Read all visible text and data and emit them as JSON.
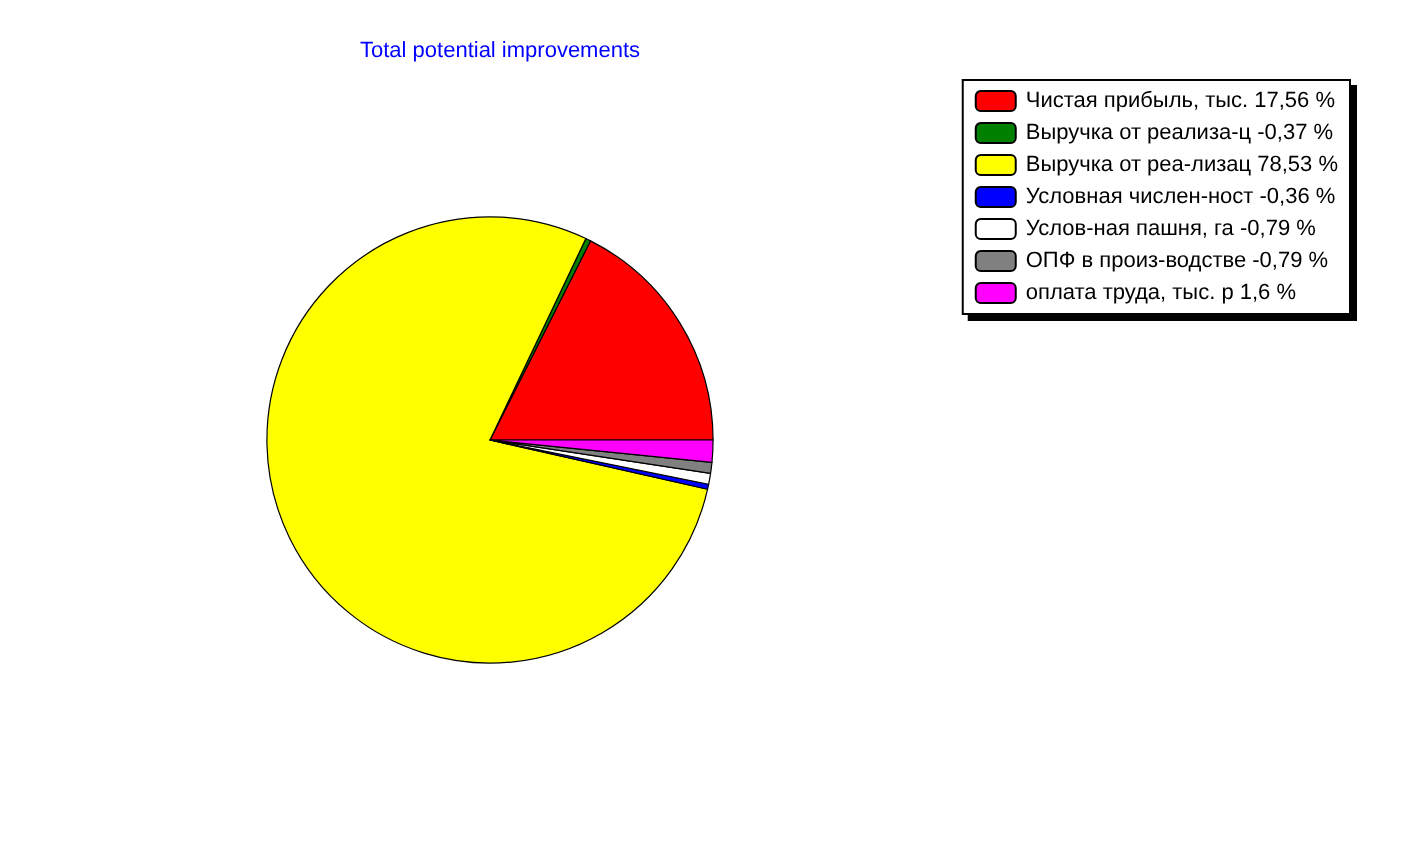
{
  "chart_data": {
    "type": "pie",
    "title": "Total potential improvements",
    "categories": [
      "Чистая прибыль, тыс. 17,56 %",
      "Выручка от реализа-ц -0,37 %",
      "Выручка от реа-лизац 78,53 %",
      "Условная числен-ност -0,36 %",
      "Услов-ная пашня, га -0,79 %",
      "ОПФ в произ-водстве -0,79 %",
      "оплата труда, тыс. р 1,6 %"
    ],
    "values": [
      17.56,
      0.37,
      78.53,
      0.36,
      0.79,
      0.79,
      1.6
    ],
    "colors": [
      "#ff0000",
      "#008000",
      "#ffff00",
      "#0000ff",
      "#ffffff",
      "#808080",
      "#ff00ff"
    ],
    "legend": "top right"
  }
}
